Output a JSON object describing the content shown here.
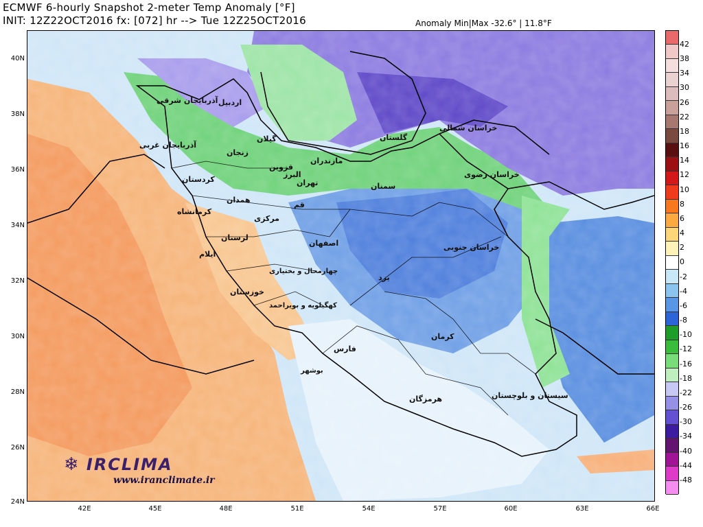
{
  "header": {
    "title_line1": "ECMWF 6-hourly Snapshot 2-meter Temp Anomaly [°F]",
    "title_line2": "INIT: 12Z22OCT2016 fx: [072] hr --> Tue 12Z25OCT2016",
    "minmax": "Anomaly Min|Max -32.6° | 11.8°F"
  },
  "axes": {
    "lat_labels": [
      "40N",
      "38N",
      "36N",
      "34N",
      "32N",
      "30N",
      "28N",
      "26N",
      "24N"
    ],
    "lon_labels": [
      "42E",
      "45E",
      "48E",
      "51E",
      "54E",
      "57E",
      "60E",
      "63E",
      "66E"
    ]
  },
  "colorbar": {
    "labels": [
      "42",
      "38",
      "34",
      "30",
      "26",
      "22",
      "18",
      "16",
      "14",
      "12",
      "10",
      "8",
      "6",
      "4",
      "2",
      "0",
      "-2",
      "-4",
      "-6",
      "-8",
      "-10",
      "-12",
      "-16",
      "-18",
      "-22",
      "-26",
      "-30",
      "-34",
      "-40",
      "-44",
      "-48"
    ],
    "colors": [
      "#e86a6a",
      "#f0c8c8",
      "#f4dede",
      "#ead2d2",
      "#dcbcbc",
      "#c9a09a",
      "#a67870",
      "#7a4a40",
      "#5a1010",
      "#9b1010",
      "#d21818",
      "#f03a1e",
      "#f8781e",
      "#fca940",
      "#fed67a",
      "#fff3b8",
      "#ffffff",
      "#c8e8f8",
      "#8cc4f0",
      "#5a96e6",
      "#2d64d8",
      "#1e9e28",
      "#3cbc3c",
      "#78dc78",
      "#bfefbf",
      "#c8c8f4",
      "#9690e6",
      "#6450d2",
      "#3c1ca0",
      "#641470",
      "#a01496",
      "#dc3cc8",
      "#f58cf0"
    ]
  },
  "provinces": [
    {
      "name": "آذربایجان شرقی"
    },
    {
      "name": "اردبیل"
    },
    {
      "name": "آذربایجان غربی"
    },
    {
      "name": "گیلان"
    },
    {
      "name": "زنجان"
    },
    {
      "name": "قزوین"
    },
    {
      "name": "مازندران"
    },
    {
      "name": "گلستان"
    },
    {
      "name": "خراسان شمالی"
    },
    {
      "name": "کردستان"
    },
    {
      "name": "البرز"
    },
    {
      "name": "تهران"
    },
    {
      "name": "سمنان"
    },
    {
      "name": "خراسان رضوی"
    },
    {
      "name": "همدان"
    },
    {
      "name": "قم"
    },
    {
      "name": "کرمانشاه"
    },
    {
      "name": "مرکزی"
    },
    {
      "name": "لرستان"
    },
    {
      "name": "اصفهان"
    },
    {
      "name": "خراسان جنوبی"
    },
    {
      "name": "ایلام"
    },
    {
      "name": "یزد"
    },
    {
      "name": "چهارمحال و بختیاری"
    },
    {
      "name": "خوزستان"
    },
    {
      "name": "کهگیلویه و بویراحمد"
    },
    {
      "name": "کرمان"
    },
    {
      "name": "فارس"
    },
    {
      "name": "بوشهر"
    },
    {
      "name": "هرمزگان"
    },
    {
      "name": "سیستان و بلوچستان"
    }
  ],
  "logo": {
    "name": "IRCLIMA",
    "url": "www.iranclimate.ir"
  }
}
